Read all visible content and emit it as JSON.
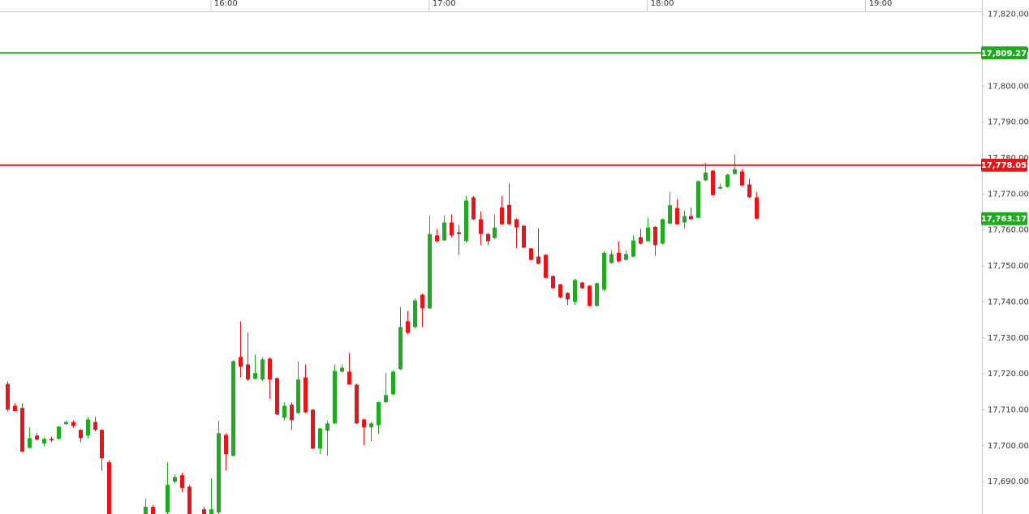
{
  "chart_data": {
    "type": "candlestick",
    "x": [
      "15:04",
      "15:06",
      "15:08",
      "15:10",
      "15:12",
      "15:14",
      "15:16",
      "15:18",
      "15:20",
      "15:22",
      "15:24",
      "15:26",
      "15:28",
      "15:30",
      "15:32",
      "15:42",
      "15:44",
      "15:48",
      "15:50",
      "15:52",
      "15:54",
      "15:58",
      "16:00",
      "16:02",
      "16:04",
      "16:06",
      "16:08",
      "16:10",
      "16:12",
      "16:14",
      "16:16",
      "16:18",
      "16:20",
      "16:22",
      "16:24",
      "16:26",
      "16:28",
      "16:30",
      "16:32",
      "16:34",
      "16:36",
      "16:38",
      "16:40",
      "16:42",
      "16:44",
      "16:46",
      "16:48",
      "16:50",
      "16:52",
      "16:54",
      "16:56",
      "16:58",
      "17:00",
      "17:02",
      "17:04",
      "17:06",
      "17:08",
      "17:10",
      "17:12",
      "17:14",
      "17:16",
      "17:18",
      "17:20",
      "17:22",
      "17:24",
      "17:26",
      "17:28",
      "17:30",
      "17:32",
      "17:34",
      "17:36",
      "17:38",
      "17:40",
      "17:42",
      "17:44",
      "17:46",
      "17:48",
      "17:50",
      "17:52",
      "17:54",
      "17:56",
      "17:58",
      "18:00",
      "18:02",
      "18:04",
      "18:06",
      "18:08",
      "18:10",
      "18:12",
      "18:14",
      "18:16",
      "18:18",
      "18:20",
      "18:22",
      "18:24",
      "18:26",
      "18:28",
      "18:30"
    ],
    "open": [
      17717.2,
      17711.1,
      17710.5,
      17699.4,
      17702.8,
      17700.6,
      17701.9,
      17701.9,
      17706.0,
      17706.6,
      17704.4,
      17702.8,
      17706.6,
      17704.4,
      17695.4,
      17681.0,
      17683.0,
      17681.4,
      17690.0,
      17691.8,
      17688.6,
      17682.3,
      17681.0,
      17681.4,
      17703.0,
      17697.2,
      17724.7,
      17722.6,
      17718.6,
      17718.4,
      17724.2,
      17718.8,
      17707.8,
      17711.4,
      17709.1,
      17719.0,
      17710.0,
      17699.2,
      17704.2,
      17706.2,
      17720.6,
      17720.6,
      17717.0,
      17707.3,
      17705.1,
      17705.7,
      17712.1,
      17714.3,
      17721.3,
      17734.6,
      17733.0,
      17742.0,
      17738.2,
      17758.5,
      17757.1,
      17762.1,
      17759.4,
      17756.9,
      17769.1,
      17763.0,
      17758.9,
      17757.8,
      17766.3,
      17767.0,
      17763.0,
      17761.2,
      17754.9,
      17752.6,
      17753.1,
      17747.2,
      17744.9,
      17742.5,
      17740.0,
      17745.4,
      17744.5,
      17738.9,
      17743.4,
      17750.8,
      17753.7,
      17751.7,
      17752.6,
      17758.0,
      17756.9,
      17760.9,
      17756.2,
      17761.8,
      17766.1,
      17762.1,
      17763.9,
      17763.4,
      17773.8,
      17776.5,
      17771.5,
      17772.0,
      17775.6,
      17776.3,
      17772.7,
      17769.1
    ],
    "high": [
      17717.9,
      17711.8,
      17711.8,
      17705.1,
      17703.5,
      17702.3,
      17702.5,
      17705.5,
      17707.0,
      17707.0,
      17704.6,
      17708.0,
      17708.0,
      17704.6,
      17696.0,
      17685.2,
      17683.5,
      17695.4,
      17692.0,
      17692.5,
      17689.0,
      17683.0,
      17690.9,
      17706.9,
      17703.5,
      17723.8,
      17734.6,
      17731.4,
      17725.3,
      17724.6,
      17724.6,
      17719.0,
      17712.0,
      17712.0,
      17723.5,
      17722.6,
      17710.2,
      17705.0,
      17707.0,
      17722.6,
      17722.6,
      17725.8,
      17717.2,
      17707.5,
      17706.6,
      17712.3,
      17720.2,
      17721.0,
      17738.6,
      17737.5,
      17741.0,
      17742.3,
      17764.1,
      17760.3,
      17764.1,
      17764.3,
      17761.4,
      17769.5,
      17769.5,
      17765.2,
      17759.2,
      17764.3,
      17769.5,
      17772.9,
      17763.2,
      17761.4,
      17755.0,
      17760.5,
      17753.3,
      17747.4,
      17745.0,
      17742.7,
      17746.5,
      17745.6,
      17744.7,
      17745.4,
      17754.0,
      17754.4,
      17756.9,
      17754.4,
      17758.5,
      17760.3,
      17763.4,
      17761.1,
      17763.2,
      17770.6,
      17768.6,
      17765.4,
      17766.3,
      17773.8,
      17778.7,
      17776.7,
      17772.9,
      17775.6,
      17781.0,
      17777.0,
      17774.2,
      17770.6
    ],
    "low": [
      17709.6,
      17709.6,
      17698.3,
      17699.2,
      17701.5,
      17699.8,
      17701.0,
      17701.7,
      17705.8,
      17705.0,
      17701.0,
      17702.0,
      17704.0,
      17693.0,
      17681.0,
      17681.0,
      17681.0,
      17681.0,
      17689.5,
      17687.0,
      17681.0,
      17681.0,
      17681.0,
      17681.0,
      17693.1,
      17697.0,
      17719.0,
      17718.0,
      17718.4,
      17718.0,
      17713.0,
      17708.5,
      17707.0,
      17704.4,
      17708.8,
      17709.0,
      17699.0,
      17697.6,
      17697.2,
      17706.0,
      17720.4,
      17717.0,
      17706.0,
      17700.1,
      17701.2,
      17703.3,
      17711.8,
      17714.0,
      17721.0,
      17731.0,
      17732.6,
      17733.0,
      17738.0,
      17756.5,
      17757.0,
      17758.0,
      17753.1,
      17756.5,
      17762.8,
      17755.8,
      17755.8,
      17757.5,
      17761.4,
      17761.4,
      17754.9,
      17755.0,
      17751.5,
      17750.4,
      17746.5,
      17743.6,
      17741.0,
      17739.1,
      17739.1,
      17743.6,
      17738.7,
      17738.7,
      17743.0,
      17750.6,
      17751.0,
      17751.5,
      17752.4,
      17756.0,
      17756.7,
      17752.8,
      17756.0,
      17761.6,
      17761.4,
      17760.5,
      17762.8,
      17763.2,
      17773.6,
      17769.5,
      17771.3,
      17771.8,
      17775.4,
      17772.2,
      17768.9,
      17763.0
    ],
    "close": [
      17710.0,
      17709.6,
      17698.3,
      17702.1,
      17701.7,
      17701.9,
      17701.5,
      17705.3,
      17706.6,
      17705.5,
      17702.1,
      17707.3,
      17704.4,
      17696.5,
      17681.0,
      17683.0,
      17681.0,
      17689.1,
      17691.3,
      17688.2,
      17681.0,
      17681.0,
      17682.3,
      17703.5,
      17697.6,
      17723.5,
      17722.0,
      17718.4,
      17720.2,
      17724.0,
      17718.4,
      17708.7,
      17711.1,
      17707.1,
      17718.4,
      17709.3,
      17699.2,
      17704.8,
      17706.2,
      17720.8,
      17721.7,
      17717.0,
      17706.2,
      17705.1,
      17706.2,
      17712.1,
      17714.1,
      17720.6,
      17733.0,
      17731.4,
      17740.4,
      17738.2,
      17758.9,
      17756.9,
      17762.1,
      17758.5,
      17758.9,
      17768.2,
      17763.0,
      17758.9,
      17756.9,
      17760.7,
      17761.6,
      17761.6,
      17760.7,
      17755.1,
      17751.7,
      17750.6,
      17746.7,
      17743.8,
      17741.3,
      17740.7,
      17746.1,
      17743.8,
      17738.9,
      17745.2,
      17753.7,
      17753.3,
      17751.3,
      17753.3,
      17757.1,
      17756.2,
      17760.7,
      17755.8,
      17763.0,
      17766.9,
      17761.6,
      17763.9,
      17763.0,
      17773.6,
      17776.0,
      17769.7,
      17772.0,
      17775.4,
      17776.9,
      17772.4,
      17769.1,
      17763.17
    ],
    "up_color": "#1faa1f",
    "down_color": "#e8141a",
    "xlim": [
      "15:02",
      "19:32"
    ],
    "xticks": [
      "16:00",
      "17:00",
      "18:00",
      "19:00"
    ],
    "ylim": [
      17681,
      17824
    ],
    "yticks": [
      {
        "value": 17690,
        "label": "17,690.00"
      },
      {
        "value": 17700,
        "label": "17,700.00"
      },
      {
        "value": 17710,
        "label": "17,710.00"
      },
      {
        "value": 17720,
        "label": "17,720.00"
      },
      {
        "value": 17730,
        "label": "17,730.00"
      },
      {
        "value": 17740,
        "label": "17,740.00"
      },
      {
        "value": 17750,
        "label": "17,750.00"
      },
      {
        "value": 17760,
        "label": "17,760.00"
      },
      {
        "value": 17770,
        "label": "17,770.00"
      },
      {
        "value": 17780,
        "label": "17,780.00"
      },
      {
        "value": 17790,
        "label": "17,790.00"
      },
      {
        "value": 17800,
        "label": "17,800.00"
      },
      {
        "value": 17810,
        "label": "17,810.00"
      },
      {
        "value": 17820,
        "label": "17,820.00"
      }
    ],
    "levels": [
      {
        "value": 17809.27,
        "label": "17,809.27",
        "color": "#1faa1f",
        "line": true
      },
      {
        "value": 17778.05,
        "label": "17,778.05",
        "color": "#e8141a",
        "line": true
      },
      {
        "value": 17763.17,
        "label": "17,763.17",
        "color": "#1faa1f",
        "line": false
      }
    ]
  }
}
